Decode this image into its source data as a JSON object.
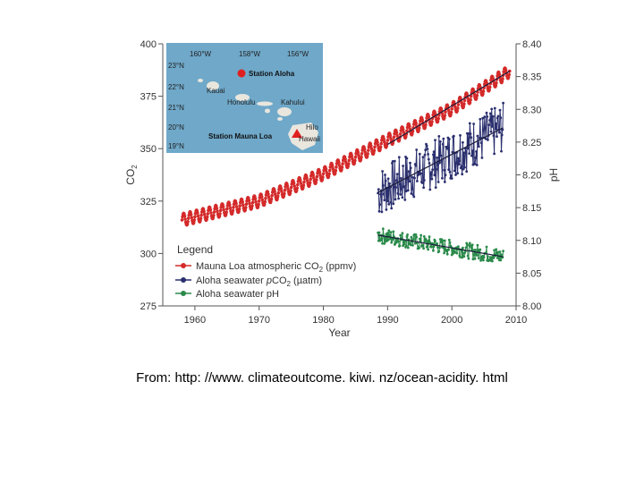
{
  "chart_data": {
    "type": "line",
    "xlabel": "Year",
    "ylabel_left": "CO",
    "ylabel_left_sub": "2",
    "ylabel_right": "pH",
    "xlim": [
      1955,
      2010
    ],
    "ylim_left": [
      275,
      400
    ],
    "ylim_right": [
      8.0,
      8.4
    ],
    "x_ticks": [
      "1960",
      "1970",
      "1980",
      "1990",
      "2000",
      "2010"
    ],
    "y_left_ticks": [
      "275",
      "300",
      "325",
      "350",
      "375",
      "400"
    ],
    "y_right_ticks": [
      "8.00",
      "8.05",
      "8.10",
      "8.15",
      "8.20",
      "8.25",
      "8.30",
      "8.35",
      "8.40"
    ],
    "series": [
      {
        "name": "Mauna Loa atmospheric CO2 (ppmv)",
        "color": "#d42a2a",
        "axis": "left",
        "x_range": [
          1958,
          2009
        ],
        "trend": [
          [
            1958,
            316
          ],
          [
            1970,
            325
          ],
          [
            1980,
            338
          ],
          [
            1990,
            354
          ],
          [
            2000,
            369
          ],
          [
            2009,
            387
          ]
        ],
        "seasonal_amplitude": 3
      },
      {
        "name": "Aloha seawater pCO2 (µatm)",
        "color": "#2a2f6e",
        "axis": "left",
        "x_range": [
          1988.5,
          2008
        ],
        "trend": [
          [
            1988.5,
            329
          ],
          [
            2008,
            360
          ]
        ],
        "scatter_amplitude": 12
      },
      {
        "name": "Aloha seawater pH",
        "color": "#2a8a4a",
        "axis": "right",
        "x_range": [
          1988.5,
          2008
        ],
        "trend": [
          [
            1988.5,
            8.108
          ],
          [
            2008,
            8.075
          ]
        ],
        "scatter_amplitude": 0.012
      }
    ],
    "trendlines": [
      {
        "series": "Aloha seawater pCO2 (µatm)",
        "axis": "left",
        "points": [
          [
            1988.5,
            329
          ],
          [
            2008,
            360
          ]
        ]
      },
      {
        "series": "Aloha seawater pH",
        "axis": "right",
        "points": [
          [
            1988.5,
            8.108
          ],
          [
            2008,
            8.075
          ]
        ]
      },
      {
        "series": "Mauna Loa atmospheric CO2 (ppmv)",
        "axis": "left",
        "points": [
          [
            1990,
            352
          ],
          [
            2009,
            387
          ]
        ]
      }
    ],
    "legend": {
      "title": "Legend",
      "position": "bottom-left",
      "entries": [
        {
          "pre": "Mauna Loa atmospheric CO",
          "sub": "2",
          "post": " (ppmv)",
          "color": "#d42a2a"
        },
        {
          "pre": "Aloha seawater ",
          "italic": "p",
          "mid": "CO",
          "sub": "2",
          "post": " (µatm)",
          "color": "#2a2f6e"
        },
        {
          "pre": "Aloha seawater pH",
          "color": "#2a8a4a"
        }
      ]
    },
    "inset_map": {
      "lon_labels": [
        "160°W",
        "158°W",
        "156°W"
      ],
      "lat_labels": [
        "23°N",
        "22°N",
        "21°N",
        "20°N",
        "19°N"
      ],
      "station_aloha": "Station Aloha",
      "station_mauna_loa": "Station Mauna Loa",
      "ocean_color": "#6fa8c9",
      "land_color": "#e9e6de",
      "islands": [
        "Kauai",
        "Honolulu",
        "Kahului",
        "Hawaii",
        "Hilo"
      ]
    }
  },
  "caption": {
    "source": "From: http: //www. climateoutcome. kiwi. nz/ocean-acidity. html"
  }
}
